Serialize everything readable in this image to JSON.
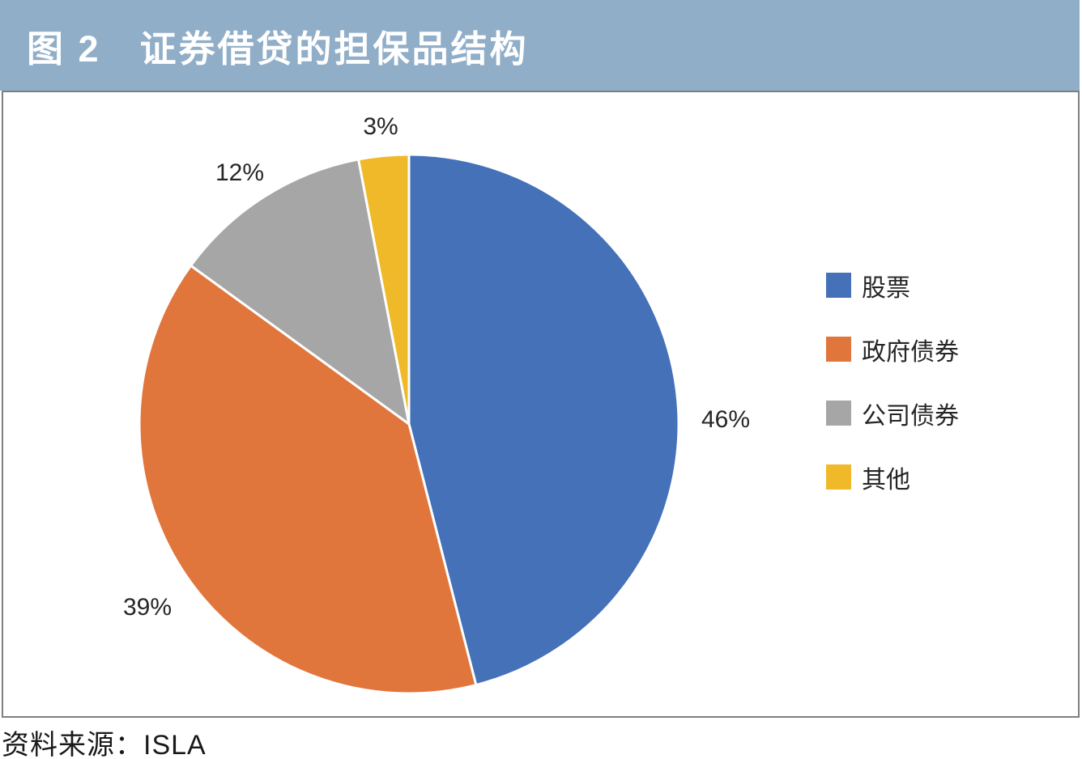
{
  "header": {
    "title": "图 2　证券借贷的担保品结构"
  },
  "chart_data": {
    "type": "pie",
    "title": "证券借贷的担保品结构",
    "legend_position": "right",
    "label_format": "percent",
    "start_angle_deg": 0,
    "direction": "clockwise",
    "slices": [
      {
        "label": "股票",
        "value": 46,
        "pct_label": "46%",
        "color": "#4471B8"
      },
      {
        "label": "政府债券",
        "value": 39,
        "pct_label": "39%",
        "color": "#E1763C"
      },
      {
        "label": "公司债券",
        "value": 12,
        "pct_label": "12%",
        "color": "#A6A6A6"
      },
      {
        "label": "其他",
        "value": 3,
        "pct_label": "3%",
        "color": "#F0B929"
      }
    ],
    "colors": {
      "title_bar_bg": "#90AEC8",
      "title_text": "#FFFFFF",
      "box_border": "#7F7F7F",
      "label_text": "#262626"
    }
  },
  "footer": {
    "source_label": "资料来源：ISLA"
  }
}
